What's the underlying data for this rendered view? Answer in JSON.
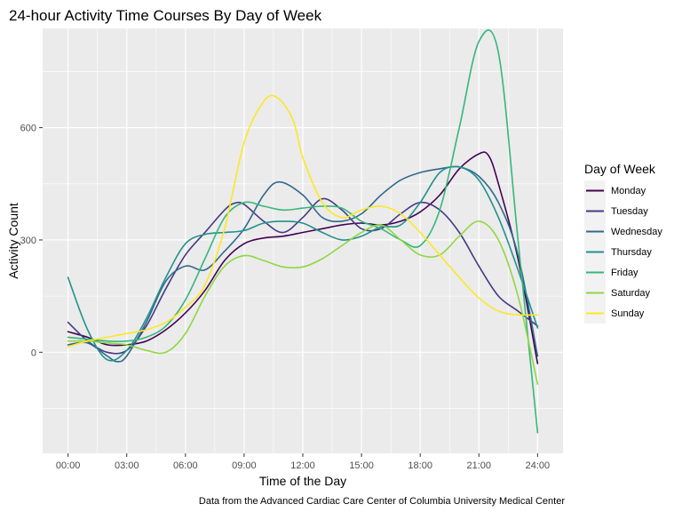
{
  "chart_data": {
    "type": "line",
    "title": "24-hour Activity Time Courses  By Day of Week",
    "xlabel": "Time of the Day",
    "ylabel": "Activity Count",
    "caption": "Data from the Advanced Cardiac Care Center of Columbia University Medical Center",
    "x_ticks": [
      0,
      3,
      6,
      9,
      12,
      15,
      18,
      21,
      24
    ],
    "x_tick_labels": [
      "00:00",
      "03:00",
      "06:00",
      "09:00",
      "12:00",
      "15:00",
      "18:00",
      "21:00",
      "24:00"
    ],
    "xlim": [
      -1.3,
      25.3
    ],
    "y_ticks": [
      0,
      300,
      600
    ],
    "y_tick_labels": [
      "0",
      "300",
      "600"
    ],
    "ylim": [
      -270,
      865
    ],
    "grid": true,
    "background": "#ebebeb",
    "legend": {
      "title": "Day of Week",
      "position": "right"
    },
    "series": [
      {
        "name": "Monday",
        "color": "#440154",
        "x": [
          0,
          1,
          2,
          3,
          4,
          5,
          6,
          7,
          8,
          9,
          10,
          11,
          12,
          13,
          14,
          15,
          16,
          17,
          18,
          19,
          20,
          21,
          21.5,
          22,
          23,
          24
        ],
        "y": [
          55,
          40,
          20,
          20,
          30,
          60,
          105,
          165,
          245,
          290,
          305,
          310,
          320,
          330,
          340,
          345,
          340,
          350,
          375,
          420,
          490,
          530,
          525,
          450,
          250,
          -30
        ]
      },
      {
        "name": "Tuesday",
        "color": "#443983",
        "x": [
          0,
          1,
          2,
          3,
          4,
          5,
          6,
          7,
          8,
          8.5,
          9,
          10,
          11,
          12,
          13,
          14,
          15,
          16,
          17,
          18,
          19,
          20,
          21,
          22,
          23,
          24
        ],
        "y": [
          80,
          30,
          0,
          5,
          70,
          170,
          260,
          320,
          380,
          398,
          395,
          350,
          320,
          360,
          410,
          380,
          330,
          330,
          370,
          400,
          380,
          320,
          230,
          150,
          110,
          70
        ]
      },
      {
        "name": "Wednesday",
        "color": "#31688e",
        "x": [
          0,
          1,
          2,
          2.5,
          3,
          4,
          5,
          6,
          7,
          8,
          9,
          10,
          10.8,
          12,
          13,
          14,
          15,
          16,
          17,
          18,
          19,
          20,
          21,
          22,
          23,
          24
        ],
        "y": [
          20,
          25,
          -10,
          -25,
          -10,
          80,
          190,
          230,
          220,
          270,
          330,
          420,
          455,
          420,
          360,
          350,
          370,
          420,
          460,
          480,
          490,
          495,
          470,
          400,
          260,
          -10
        ]
      },
      {
        "name": "Thursday",
        "color": "#21918c",
        "x": [
          0,
          1,
          2,
          3,
          4,
          5,
          6,
          7,
          8,
          9,
          10,
          11,
          12,
          13,
          14,
          15,
          16,
          17,
          18,
          19,
          20,
          21,
          22,
          23,
          24
        ],
        "y": [
          200,
          60,
          -20,
          5,
          90,
          200,
          290,
          315,
          320,
          325,
          345,
          350,
          345,
          320,
          300,
          310,
          335,
          340,
          400,
          480,
          495,
          460,
          360,
          220,
          65
        ]
      },
      {
        "name": "Friday",
        "color": "#35b779",
        "x": [
          0,
          1,
          2,
          3,
          4,
          5,
          6,
          7,
          8,
          9,
          10,
          11,
          12,
          13,
          14,
          15,
          16,
          17,
          18,
          19,
          20,
          21,
          22,
          23,
          24
        ],
        "y": [
          40,
          35,
          30,
          30,
          40,
          70,
          140,
          250,
          360,
          400,
          390,
          380,
          385,
          390,
          385,
          350,
          330,
          300,
          285,
          380,
          600,
          830,
          800,
          300,
          -215
        ]
      },
      {
        "name": "Saturday",
        "color": "#8fd744",
        "x": [
          0,
          1,
          2,
          3,
          4,
          5,
          6,
          7,
          8,
          9,
          10,
          11,
          12,
          13,
          14,
          15,
          16,
          17,
          18,
          19,
          20,
          21,
          22,
          23,
          24
        ],
        "y": [
          30,
          30,
          25,
          20,
          5,
          0,
          50,
          150,
          230,
          258,
          245,
          228,
          228,
          250,
          285,
          320,
          340,
          300,
          260,
          260,
          310,
          350,
          300,
          150,
          -85
        ]
      },
      {
        "name": "Sunday",
        "color": "#fde725",
        "x": [
          0,
          1,
          2,
          3,
          4,
          5,
          6,
          7,
          8,
          9,
          10,
          10.7,
          11.5,
          12,
          13,
          14,
          15,
          16,
          17,
          18,
          19,
          20,
          21,
          22,
          23,
          24
        ],
        "y": [
          15,
          30,
          40,
          50,
          60,
          80,
          120,
          180,
          330,
          560,
          670,
          680,
          620,
          520,
          400,
          360,
          380,
          390,
          370,
          320,
          260,
          200,
          145,
          110,
          100,
          100
        ]
      }
    ]
  }
}
